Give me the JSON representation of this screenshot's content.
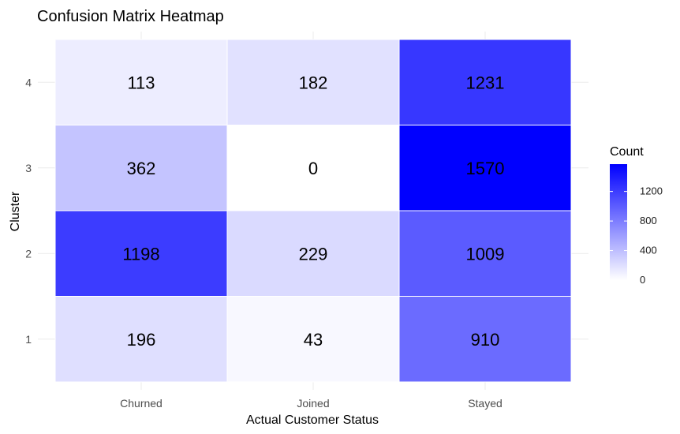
{
  "chart_data": {
    "type": "heatmap",
    "title": "Confusion Matrix Heatmap",
    "xlabel": "Actual Customer Status",
    "ylabel": "Cluster",
    "x_categories": [
      "Churned",
      "Joined",
      "Stayed"
    ],
    "y_categories": [
      "1",
      "2",
      "3",
      "4"
    ],
    "values": [
      [
        196,
        43,
        910
      ],
      [
        1198,
        229,
        1009
      ],
      [
        362,
        0,
        1570
      ],
      [
        113,
        182,
        1231
      ]
    ],
    "color_scale": {
      "low": "#ffffff",
      "high": "#0000ff",
      "min": 0,
      "max": 1570
    },
    "legend": {
      "title": "Count",
      "ticks": [
        0,
        400,
        800,
        1200
      ],
      "placement": "right"
    },
    "grid": true
  }
}
